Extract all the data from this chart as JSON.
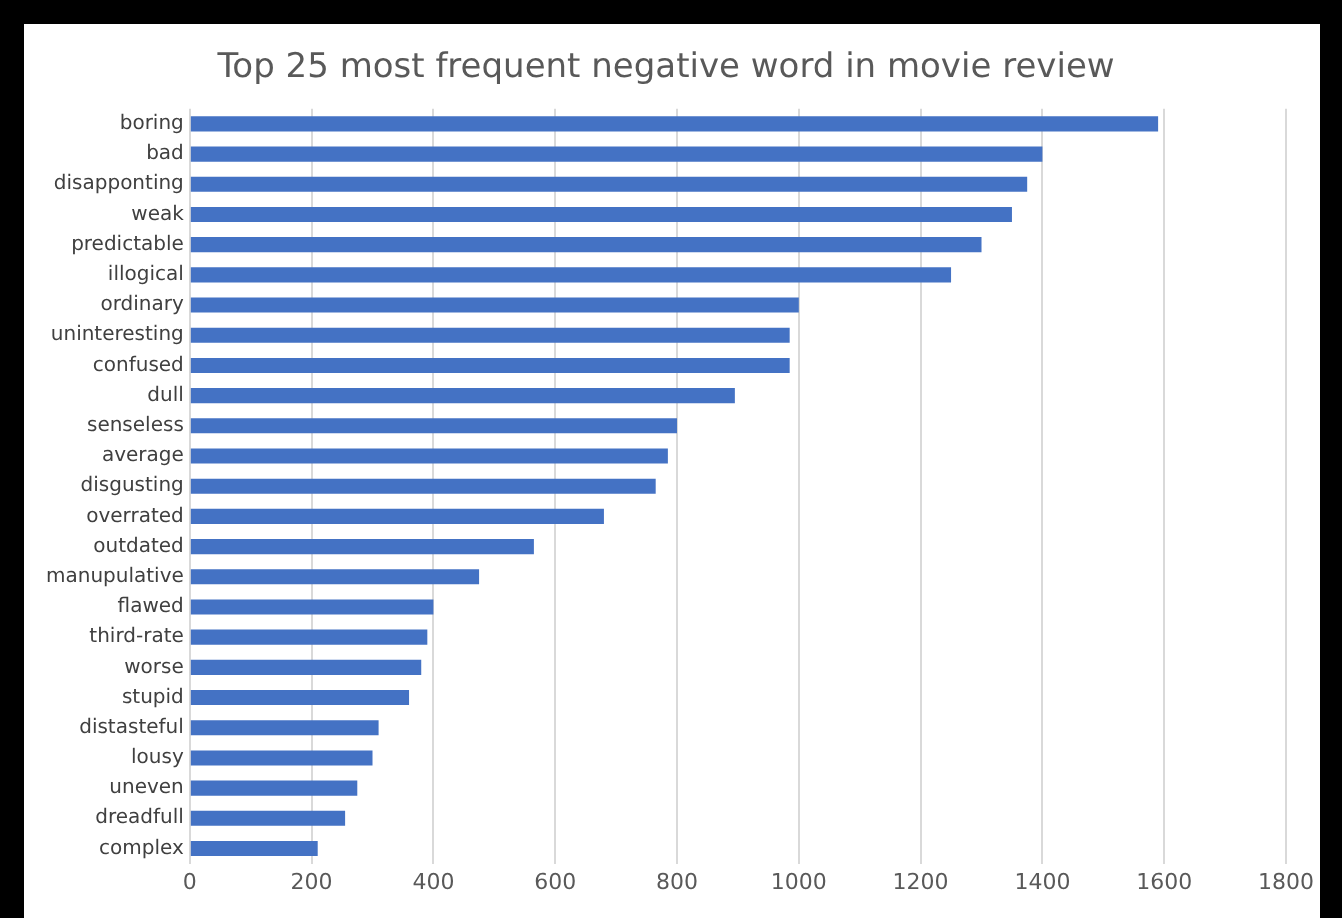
{
  "chart_data": {
    "type": "bar",
    "orientation": "horizontal",
    "title": "Top 25 most frequent negative word in movie review",
    "categories": [
      "boring",
      "bad",
      "disapponting",
      "weak",
      "predictable",
      "illogical",
      "ordinary",
      "uninteresting",
      "confused",
      "dull",
      "senseless",
      "average",
      "disgusting",
      "overrated",
      "outdated",
      "manupulative",
      "flawed",
      "third-rate",
      "worse",
      "stupid",
      "distasteful",
      "lousy",
      "uneven",
      "dreadfull",
      "complex"
    ],
    "values": [
      1590,
      1400,
      1375,
      1350,
      1300,
      1250,
      1000,
      985,
      985,
      895,
      800,
      785,
      765,
      680,
      565,
      475,
      400,
      390,
      380,
      360,
      310,
      300,
      275,
      255,
      210
    ],
    "color": "#4472c4",
    "xlim": [
      0,
      1800
    ],
    "xticks": [
      0,
      200,
      400,
      600,
      800,
      1000,
      1200,
      1400,
      1600,
      1800
    ],
    "grid": "x",
    "legend": false
  }
}
